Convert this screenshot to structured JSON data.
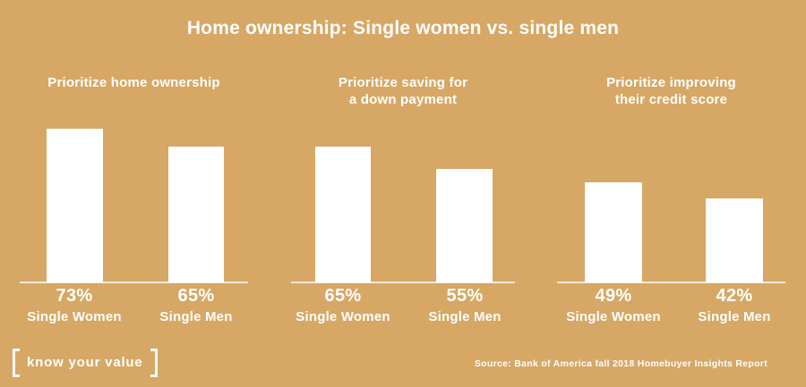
{
  "title": "Home ownership: Single women vs. single men",
  "colors": {
    "background": "#D6A765",
    "bar": "#FFFFFF",
    "text": "#FFFFFF"
  },
  "chart_data": {
    "type": "bar",
    "title": "Home ownership: Single women vs. single men",
    "categories": [
      "Prioritize home ownership",
      "Prioritize saving for a down payment",
      "Prioritize improving their credit score"
    ],
    "series": [
      {
        "name": "Single Women",
        "values": [
          73,
          65,
          49
        ]
      },
      {
        "name": "Single Men",
        "values": [
          65,
          55,
          42
        ]
      }
    ],
    "unit": "%",
    "ylim": [
      0,
      80
    ],
    "grid": false,
    "legend": "none",
    "data_labels": true,
    "groups": [
      {
        "heading_line1": "Prioritize home ownership",
        "heading_line2": "",
        "bars": [
          {
            "category": "Single Women",
            "value": 73,
            "display": "73%"
          },
          {
            "category": "Single Men",
            "value": 65,
            "display": "65%"
          }
        ]
      },
      {
        "heading_line1": "Prioritize saving for",
        "heading_line2": "a down payment",
        "bars": [
          {
            "category": "Single Women",
            "value": 65,
            "display": "65%"
          },
          {
            "category": "Single Men",
            "value": 55,
            "display": "55%"
          }
        ]
      },
      {
        "heading_line1": "Prioritize improving",
        "heading_line2": "their credit score",
        "bars": [
          {
            "category": "Single Women",
            "value": 49,
            "display": "49%"
          },
          {
            "category": "Single Men",
            "value": 42,
            "display": "42%"
          }
        ]
      }
    ]
  },
  "footer": {
    "logo_text": "know your value",
    "source": "Source: Bank of America fall 2018 Homebuyer Insights Report"
  }
}
